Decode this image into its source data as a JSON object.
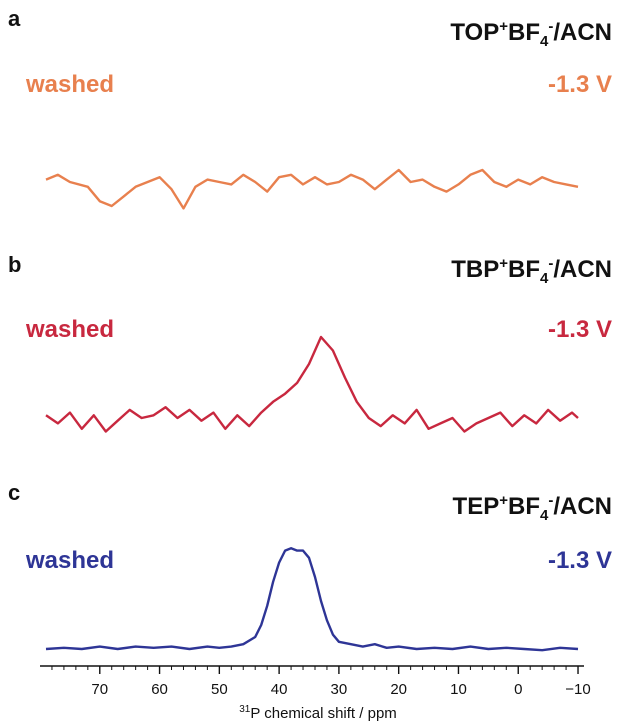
{
  "chart_data": {
    "type": "line",
    "xlabel_sup": "31",
    "xlabel": "P chemical shift / ppm",
    "xlim": [
      80,
      -11
    ],
    "x_reversed": true,
    "xticks": [
      70,
      60,
      50,
      40,
      30,
      20,
      10,
      0,
      -10
    ],
    "xtick_labels": [
      "70",
      "60",
      "50",
      "40",
      "30",
      "20",
      "10",
      "0",
      "−10"
    ],
    "panels": [
      {
        "label": "a",
        "title": {
          "base": "TOP",
          "sup": "+",
          "mid": "BF",
          "sub": "4",
          "sup2": "-",
          "end": "/ACN"
        },
        "left_text": "washed",
        "right_text": "-1.3 V",
        "color": "#E8804E",
        "series": [
          {
            "x": [
              79,
              77,
              75,
              72,
              70,
              68,
              66,
              64,
              62,
              60,
              58,
              56,
              54,
              52,
              50,
              48,
              46,
              44,
              42,
              40,
              38,
              36,
              34,
              32,
              30,
              28,
              26,
              24,
              22,
              20,
              18,
              16,
              14,
              12,
              10,
              8,
              6,
              4,
              2,
              0,
              -2,
              -4,
              -6,
              -8,
              -10
            ],
            "y": [
              0.1,
              0.3,
              0.0,
              -0.2,
              -0.8,
              -1.0,
              -0.6,
              -0.2,
              0.0,
              0.2,
              -0.3,
              -1.1,
              -0.2,
              0.1,
              0.0,
              -0.1,
              0.3,
              0.0,
              -0.4,
              0.2,
              0.3,
              -0.1,
              0.2,
              -0.1,
              0.0,
              0.3,
              0.1,
              -0.3,
              0.1,
              0.5,
              0.0,
              0.1,
              -0.2,
              -0.4,
              -0.1,
              0.3,
              0.5,
              0.0,
              -0.2,
              0.1,
              -0.1,
              0.2,
              0.0,
              -0.1,
              -0.2
            ]
          }
        ]
      },
      {
        "label": "b",
        "title": {
          "base": "TBP",
          "sup": "+",
          "mid": "BF",
          "sub": "4",
          "sup2": "-",
          "end": "/ACN"
        },
        "left_text": "washed",
        "right_text": "-1.3 V",
        "color": "#C8283F",
        "series": [
          {
            "x": [
              79,
              77,
              75,
              73,
              71,
              69,
              67,
              65,
              63,
              61,
              59,
              57,
              55,
              53,
              51,
              49,
              47,
              45,
              43,
              41,
              39,
              37,
              35,
              33,
              31,
              29,
              27,
              25,
              23,
              21,
              19,
              17,
              15,
              13,
              11,
              9,
              7,
              5,
              3,
              1,
              -1,
              -3,
              -5,
              -7,
              -9,
              -10
            ],
            "y": [
              0.1,
              -0.2,
              0.2,
              -0.4,
              0.1,
              -0.5,
              -0.1,
              0.3,
              0.0,
              0.1,
              0.4,
              0.0,
              0.3,
              -0.1,
              0.2,
              -0.4,
              0.1,
              -0.3,
              0.2,
              0.6,
              0.9,
              1.3,
              2.0,
              3.0,
              2.5,
              1.5,
              0.6,
              0.0,
              -0.3,
              0.1,
              -0.2,
              0.3,
              -0.4,
              -0.2,
              0.0,
              -0.5,
              -0.2,
              0.0,
              0.2,
              -0.3,
              0.1,
              -0.2,
              0.3,
              -0.1,
              0.2,
              0.0
            ]
          }
        ]
      },
      {
        "label": "c",
        "title": {
          "base": "TEP",
          "sup": "+",
          "mid": "BF",
          "sub": "4",
          "sup2": "-",
          "end": "/ACN"
        },
        "left_text": "washed",
        "right_text": "-1.3 V",
        "color": "#2E3596",
        "series": [
          {
            "x": [
              79,
              76,
              73,
              70,
              67,
              64,
              61,
              58,
              55,
              52,
              50,
              48,
              46,
              44,
              43,
              42,
              41,
              40,
              39,
              38,
              37,
              36,
              35,
              34,
              33,
              32,
              31,
              30,
              28,
              26,
              24,
              22,
              20,
              17,
              14,
              11,
              8,
              5,
              2,
              -1,
              -4,
              -7,
              -10
            ],
            "y": [
              0.0,
              0.05,
              0.0,
              0.1,
              0.0,
              0.1,
              0.05,
              0.1,
              0.0,
              0.1,
              0.05,
              0.1,
              0.2,
              0.5,
              1.0,
              1.8,
              2.8,
              3.6,
              4.1,
              4.2,
              4.1,
              4.1,
              3.8,
              3.0,
              2.0,
              1.2,
              0.6,
              0.3,
              0.2,
              0.1,
              0.2,
              0.05,
              0.1,
              0.0,
              0.05,
              0.0,
              0.1,
              0.0,
              0.05,
              0.0,
              -0.05,
              0.05,
              0.0
            ]
          }
        ]
      }
    ]
  }
}
